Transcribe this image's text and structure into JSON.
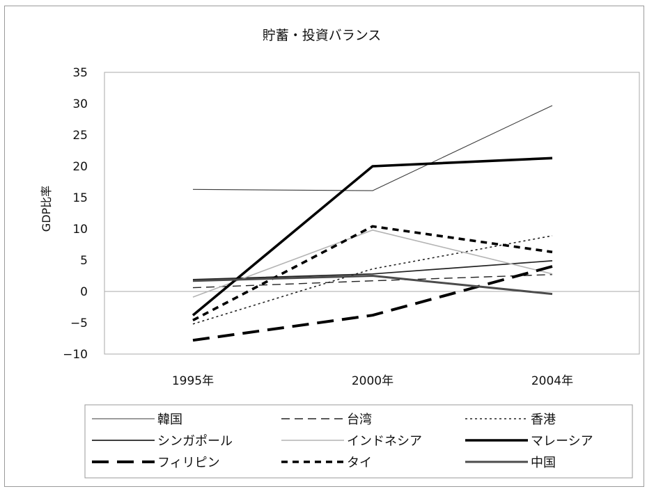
{
  "chart_data": {
    "type": "line",
    "title": "貯蓄・投資バランス",
    "xlabel": "",
    "ylabel": "GDP比率",
    "categories": [
      "1995年",
      "2000年",
      "2004年"
    ],
    "ylim": [
      -10,
      35
    ],
    "yticks": [
      -10,
      -5,
      0,
      5,
      10,
      15,
      20,
      25,
      30,
      35
    ],
    "grid": false,
    "legend_position": "bottom",
    "series": [
      {
        "name": "韓国",
        "values": [
          16.3,
          16.1,
          29.7
        ],
        "color": "#3a3a3a",
        "style": "thin-solid"
      },
      {
        "name": "台湾",
        "values": [
          0.6,
          1.7,
          2.7
        ],
        "color": "#222222",
        "style": "dashed"
      },
      {
        "name": "香港",
        "values": [
          -5.2,
          3.6,
          8.9
        ],
        "color": "#222222",
        "style": "dotted"
      },
      {
        "name": "シンガポール",
        "values": [
          1.9,
          2.8,
          4.9
        ],
        "color": "#222222",
        "style": "medium-solid"
      },
      {
        "name": "インドネシア",
        "values": [
          -0.9,
          9.8,
          2.8
        ],
        "color": "#b4b4b4",
        "style": "gray-solid"
      },
      {
        "name": "マレーシア",
        "values": [
          -3.8,
          20.0,
          21.3
        ],
        "color": "#000000",
        "style": "thick-solid"
      },
      {
        "name": "フィリピン",
        "values": [
          -7.8,
          -3.8,
          4.0
        ],
        "color": "#000000",
        "style": "thick-dashed"
      },
      {
        "name": "タイ",
        "values": [
          -4.6,
          10.4,
          6.3
        ],
        "color": "#000000",
        "style": "bold-dashed"
      },
      {
        "name": "中国",
        "values": [
          1.7,
          2.5,
          -0.4
        ],
        "color": "#4c4c4c",
        "style": "dark-thick-solid"
      }
    ]
  }
}
